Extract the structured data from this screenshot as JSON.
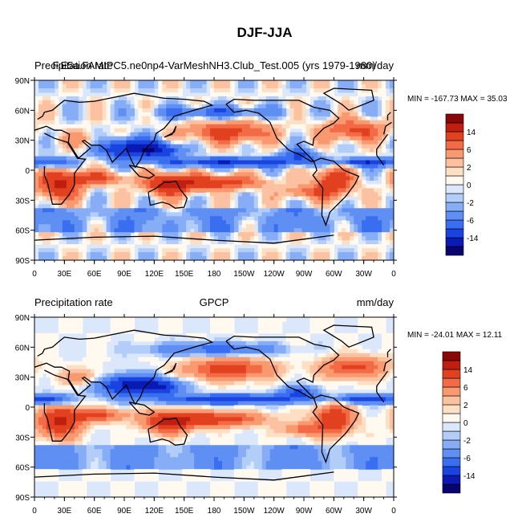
{
  "figure": {
    "title": "DJF-JJA"
  },
  "colors": {
    "levels": [
      "#08036e",
      "#0b1ab5",
      "#1a44e0",
      "#3a6ef0",
      "#5f8ff3",
      "#86adf6",
      "#b3cdf9",
      "#dbe8fc",
      "#fff9f0",
      "#fde0c4",
      "#fcc1a0",
      "#f8996f",
      "#f26a46",
      "#e2411f",
      "#c01e10",
      "#8b0707"
    ],
    "coast": "#000000"
  },
  "colorbar": {
    "labels": [
      "14",
      "6",
      "2",
      "0",
      "-2",
      "-6",
      "-14"
    ]
  },
  "chart_data": [
    {
      "type": "heatmap",
      "title_left": "Precipitation rate",
      "title_center": "F.E5a.FAMIPC5.ne0np4-VarMeshNH3.Club_Test.005 (yrs 1979-1980)",
      "title_right": "mm/day",
      "stats": "MIN = -167.73 MAX =  35.03",
      "xticks": [
        "0",
        "30E",
        "60E",
        "90E",
        "120E",
        "150E",
        "180",
        "150W",
        "120W",
        "90W",
        "60W",
        "30W",
        "0"
      ],
      "yticks": [
        "90N",
        "60N",
        "30N",
        "0",
        "30S",
        "60S",
        "90S"
      ],
      "xlim": [
        0,
        360
      ],
      "ylim": [
        -90,
        90
      ],
      "colorbar_labels": [
        "14",
        "6",
        "2",
        "0",
        "-2",
        "-6",
        "-14"
      ]
    },
    {
      "type": "heatmap",
      "title_left": "Precipitation rate",
      "title_center": "GPCP",
      "title_right": "mm/day",
      "stats": "MIN = -24.01 MAX =  12.11",
      "xticks": [
        "0",
        "30E",
        "60E",
        "90E",
        "120E",
        "150E",
        "180",
        "150W",
        "120W",
        "90W",
        "60W",
        "30W",
        "0"
      ],
      "yticks": [
        "90N",
        "60N",
        "30N",
        "0",
        "30S",
        "60S",
        "90S"
      ],
      "xlim": [
        0,
        360
      ],
      "ylim": [
        -90,
        90
      ],
      "colorbar_labels": [
        "14",
        "6",
        "2",
        "0",
        "-2",
        "-6",
        "-14"
      ]
    }
  ]
}
